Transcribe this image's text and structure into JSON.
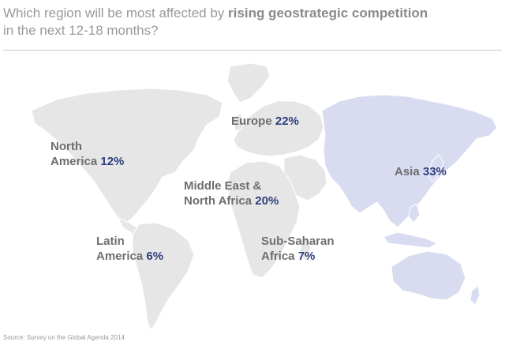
{
  "title": {
    "part1": "Which region will be most affected by ",
    "bold": "rising geostrategic competition",
    "part2": "in the next 12-18 months?"
  },
  "regions": {
    "north_america": {
      "line1": "North",
      "line2": "America",
      "pct": "12%"
    },
    "europe": {
      "line1": "Europe",
      "pct": "22%"
    },
    "middle_east": {
      "line1": "Middle East &",
      "line2": "North Africa",
      "pct": "20%"
    },
    "asia": {
      "line1": "Asia",
      "pct": "33%"
    },
    "latin_america": {
      "line1": "Latin",
      "line2": "America",
      "pct": "6%"
    },
    "sub_saharan": {
      "line1": "Sub-Saharan",
      "line2": "Africa",
      "pct": "7%"
    }
  },
  "colors": {
    "land": "#e6e6e6",
    "highlight": "#d9dcf1",
    "percent": "#2e3f7c"
  },
  "source": "Source: Survey on the Global Agenda 2014"
}
